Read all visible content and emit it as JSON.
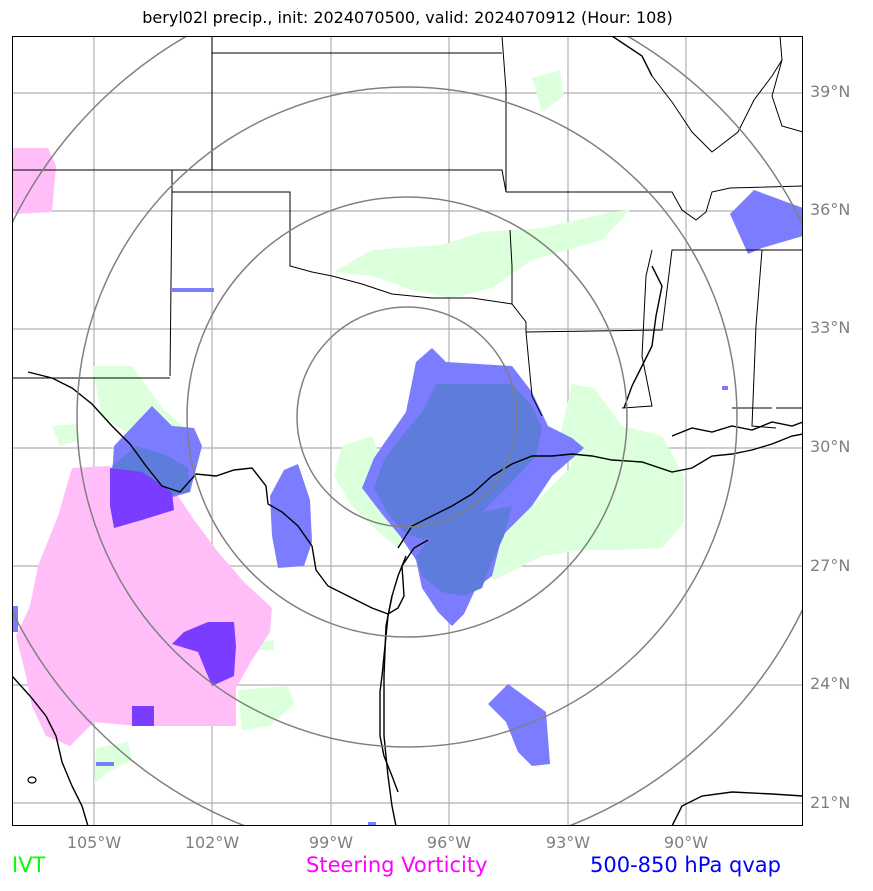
{
  "title": "beryl02l precip., init: 2024070500, valid: 2024070912 (Hour: 108)",
  "lat_labels": [
    "39°N",
    "36°N",
    "33°N",
    "30°N",
    "27°N",
    "24°N",
    "21°N"
  ],
  "lon_labels": [
    "105°W",
    "102°W",
    "99°W",
    "96°W",
    "93°W",
    "90°W"
  ],
  "legend": {
    "ivt": {
      "label": "IVT",
      "color": "#00ff00"
    },
    "steering": {
      "label": "Steering Vorticity",
      "color": "#ff00ff"
    },
    "qvap": {
      "label": "500-850 hPa qvap",
      "color": "#0000ff"
    }
  },
  "colors": {
    "ivt_fill": "#dcffdc",
    "steering_fill": "#ffbef8",
    "qvap_fill": "#7c7cff",
    "overlap_fill": "#5d7cdc",
    "deep_fill": "#7a3cff",
    "range_ring": "#808080",
    "grid": "#b0b0b0"
  },
  "map": {
    "lon_range": [
      -107.2,
      -87.2
    ],
    "lat_range": [
      20.5,
      40.4
    ],
    "range_ring_center": [
      -97,
      30.5
    ],
    "range_rings_count": 4
  }
}
